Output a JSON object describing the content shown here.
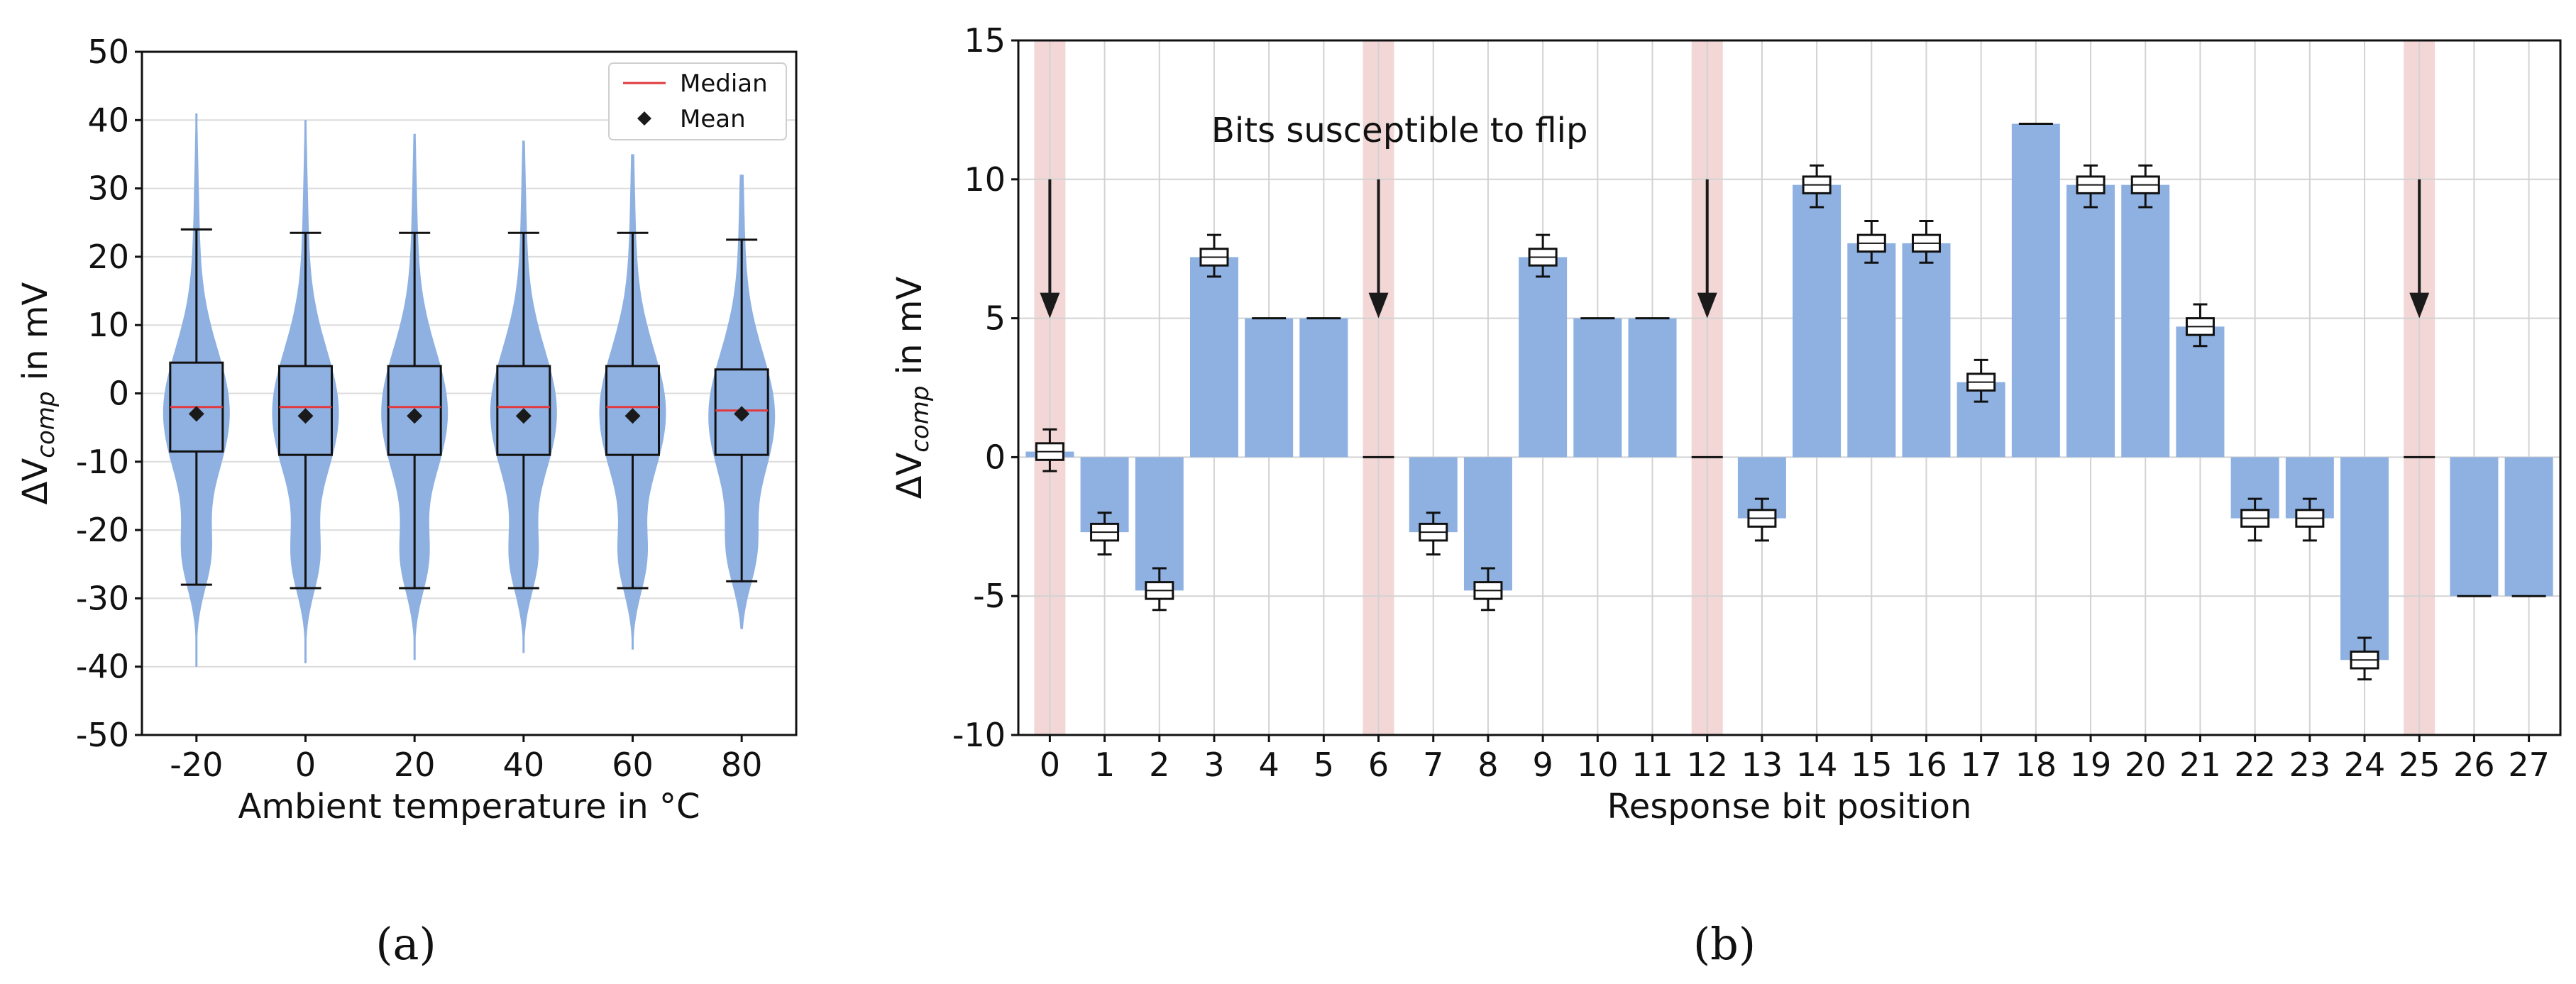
{
  "chart_data": [
    {
      "type": "violin+box",
      "panel_label": "(a)",
      "xlabel": "Ambient temperature in °C",
      "ylabel": {
        "delta": "ΔV",
        "sub": "comp",
        "rest": " in mV"
      },
      "ylim": [
        -50,
        50
      ],
      "yticks": [
        50,
        40,
        30,
        20,
        10,
        0,
        -10,
        -20,
        -30,
        -40,
        -50
      ],
      "categories": [
        "-20",
        "0",
        "20",
        "40",
        "60",
        "80"
      ],
      "grid": "horizontal",
      "legend": {
        "position": "top-right",
        "median_label": "Median",
        "mean_label": "Mean"
      },
      "series": [
        {
          "category": "-20",
          "whisker_low": -28,
          "q1": -8.5,
          "median": -2,
          "q3": 4.5,
          "whisker_high": 24,
          "mean": -3,
          "violin_min": -40,
          "violin_max": 41
        },
        {
          "category": "0",
          "whisker_low": -28.5,
          "q1": -9,
          "median": -2,
          "q3": 4,
          "whisker_high": 23.5,
          "mean": -3.3,
          "violin_min": -39.5,
          "violin_max": 40
        },
        {
          "category": "20",
          "whisker_low": -28.5,
          "q1": -9,
          "median": -2,
          "q3": 4,
          "whisker_high": 23.5,
          "mean": -3.3,
          "violin_min": -39,
          "violin_max": 38
        },
        {
          "category": "40",
          "whisker_low": -28.5,
          "q1": -9,
          "median": -2,
          "q3": 4,
          "whisker_high": 23.5,
          "mean": -3.3,
          "violin_min": -38,
          "violin_max": 37
        },
        {
          "category": "60",
          "whisker_low": -28.5,
          "q1": -9,
          "median": -2,
          "q3": 4,
          "whisker_high": 23.5,
          "mean": -3.3,
          "violin_min": -37.5,
          "violin_max": 35
        },
        {
          "category": "80",
          "whisker_low": -27.5,
          "q1": -9,
          "median": -2.5,
          "q3": 3.5,
          "whisker_high": 22.5,
          "mean": -3,
          "violin_min": -34.5,
          "violin_max": 32
        }
      ],
      "colors": {
        "violin": "#8eb1e2",
        "median": "#e0393e",
        "box": "#111111",
        "mean": "#1a1a1a"
      }
    },
    {
      "type": "bar",
      "panel_label": "(b)",
      "xlabel": "Response bit position",
      "ylabel": {
        "delta": "ΔV",
        "sub": "comp",
        "rest": " in mV"
      },
      "ylim": [
        -10,
        15
      ],
      "yticks": [
        15,
        10,
        5,
        0,
        -5,
        -10
      ],
      "categories": [
        "0",
        "1",
        "2",
        "3",
        "4",
        "5",
        "6",
        "7",
        "8",
        "9",
        "10",
        "11",
        "12",
        "13",
        "14",
        "15",
        "16",
        "17",
        "18",
        "19",
        "20",
        "21",
        "22",
        "23",
        "24",
        "25",
        "26",
        "27"
      ],
      "values": [
        0.2,
        -2.7,
        -4.8,
        7.2,
        5,
        5,
        0,
        -2.7,
        -4.8,
        7.2,
        5,
        5,
        0,
        -2.2,
        9.8,
        7.7,
        7.7,
        2.7,
        12,
        9.8,
        9.8,
        4.7,
        -2.2,
        -2.2,
        -7.3,
        0,
        -5,
        -5
      ],
      "box_spread": [
        [
          -0.5,
          1.0
        ],
        [
          -3.5,
          -2.0
        ],
        [
          -5.5,
          -4.0
        ],
        [
          6.5,
          8.0
        ],
        null,
        null,
        null,
        [
          -3.5,
          -2.0
        ],
        [
          -5.5,
          -4.0
        ],
        [
          6.5,
          8.0
        ],
        null,
        null,
        null,
        [
          -3.0,
          -1.5
        ],
        [
          9.0,
          10.5
        ],
        [
          7.0,
          8.5
        ],
        [
          7.0,
          8.5
        ],
        [
          2.0,
          3.5
        ],
        null,
        [
          9.0,
          10.5
        ],
        [
          9.0,
          10.5
        ],
        [
          4.0,
          5.5
        ],
        [
          -3.0,
          -1.5
        ],
        [
          -3.0,
          -1.5
        ],
        [
          -8.0,
          -6.5
        ],
        null,
        null,
        null
      ],
      "flip_bits": [
        0,
        6,
        12,
        25
      ],
      "annotation": "Bits susceptible to flip",
      "grid": "both",
      "colors": {
        "bar": "#8eb1e2",
        "highlight": "#f3d7d7",
        "arrow": "#1a1a1a"
      }
    }
  ]
}
